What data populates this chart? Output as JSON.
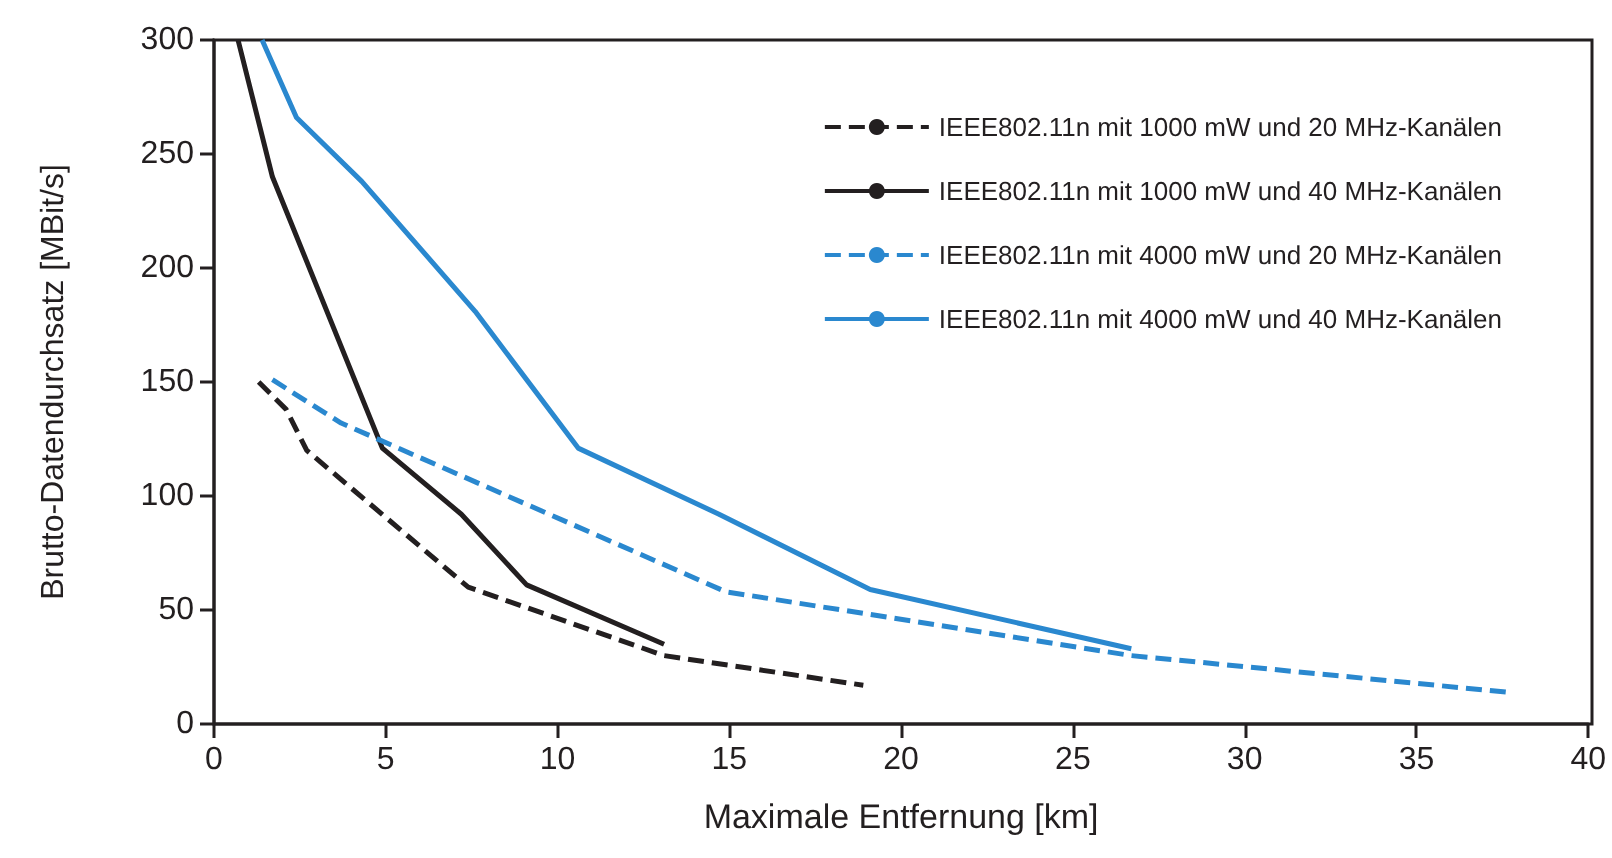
{
  "chart_data": {
    "type": "line",
    "xlabel": "Maximale Entfernung [km]",
    "ylabel": "Brutto-Datendurchsatz [MBit/s]",
    "xlim": [
      0,
      40
    ],
    "xticks": [
      0,
      5,
      10,
      15,
      20,
      25,
      30,
      35,
      40
    ],
    "ylim": [
      0,
      300
    ],
    "yticks": [
      0,
      50,
      100,
      150,
      200,
      250,
      300
    ],
    "grid": false,
    "legend": "top right",
    "marker": "none",
    "series": [
      {
        "name": "IEEE802.11n mit 1000 mW und 20 MHz-Kanälen",
        "color": "#231f20",
        "line_style": "dashed",
        "x": [
          1.3,
          2.1,
          2.7,
          7.4,
          13.1,
          18.9
        ],
        "values": [
          150,
          138,
          120,
          60,
          30,
          17
        ]
      },
      {
        "name": "IEEE802.11n mit 1000 mW und 40 MHz-Kanälen",
        "color": "#231f20",
        "line_style": "solid",
        "x": [
          0.7,
          1.7,
          4.9,
          7.2,
          9.1,
          13.1
        ],
        "values": [
          300,
          240,
          121,
          92,
          61,
          35
        ]
      },
      {
        "name": "IEEE802.11n mit 4000 mW und 20 MHz-Kanälen",
        "color": "#2a88cf",
        "line_style": "dashed",
        "x": [
          1.7,
          3.7,
          14.9,
          26.7,
          37.6
        ],
        "values": [
          151,
          132,
          58,
          30,
          14
        ]
      },
      {
        "name": "IEEE802.11n mit 4000 mW und 40 MHz-Kanälen",
        "color": "#2a88cf",
        "line_style": "solid",
        "x": [
          1.4,
          2.4,
          4.3,
          7.6,
          10.6,
          14.7,
          19.1,
          26.7
        ],
        "values": [
          300,
          266,
          238,
          181,
          121,
          92,
          59,
          33
        ]
      }
    ]
  }
}
